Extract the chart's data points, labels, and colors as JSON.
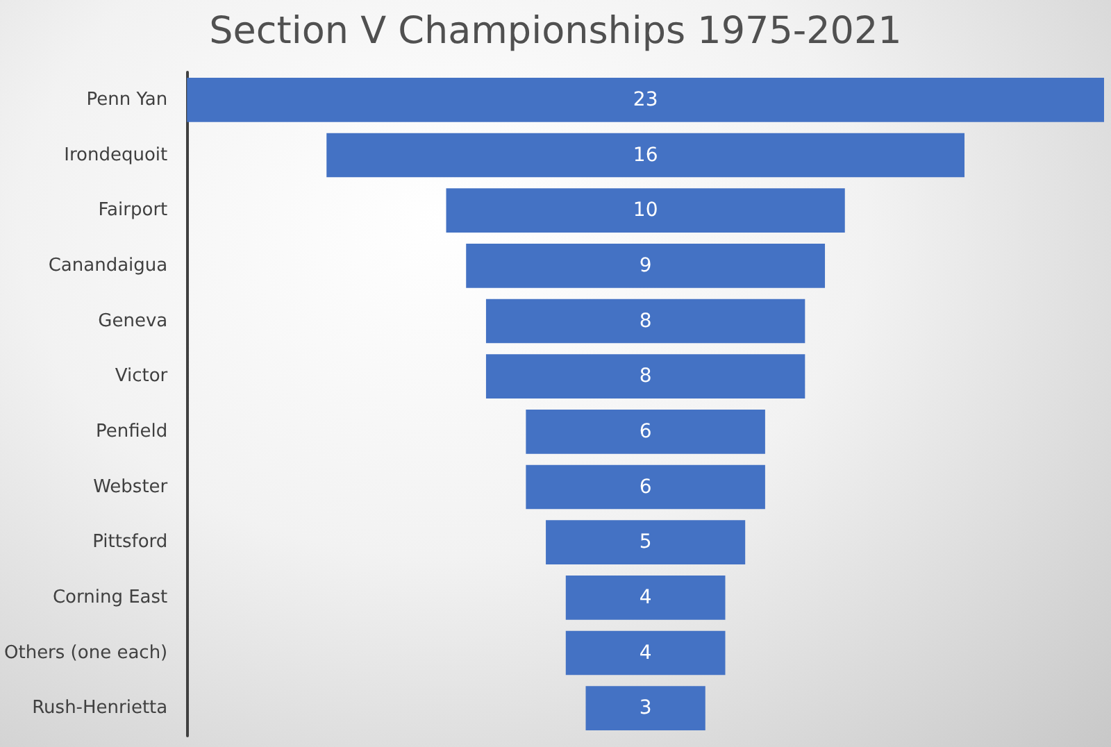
{
  "chart_data": {
    "type": "other",
    "title": "Section V Championships 1975-2021",
    "categories": [
      "Penn Yan",
      "Irondequoit",
      "Fairport",
      "Canandaigua",
      "Geneva",
      "Victor",
      "Penfield",
      "Webster",
      "Pittsford",
      "Corning East",
      "Others (one each)",
      "Rush-Henrietta"
    ],
    "values": [
      23,
      16,
      10,
      9,
      8,
      8,
      6,
      6,
      5,
      4,
      4,
      3
    ],
    "color": "#4472c4",
    "data_labels": true
  }
}
